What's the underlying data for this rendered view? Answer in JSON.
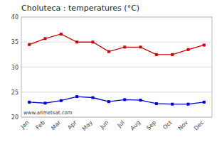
{
  "chart_data": {
    "type": "line",
    "title": "Choluteca : temperatures (°C)",
    "categories": [
      "Jan",
      "Feb",
      "Mar",
      "Apr",
      "May",
      "Jun",
      "Jul",
      "Aug",
      "Sep",
      "Oct",
      "Nov",
      "Dec"
    ],
    "series": [
      {
        "color": "#cc0000",
        "marker": "square",
        "values": [
          34.5,
          35.7,
          36.6,
          35.0,
          35.0,
          33.1,
          34.0,
          34.0,
          32.5,
          32.5,
          33.5,
          34.4
        ]
      },
      {
        "color": "#0000cc",
        "marker": "square",
        "values": [
          23.0,
          22.8,
          23.3,
          24.1,
          23.9,
          23.1,
          23.5,
          23.4,
          22.7,
          22.6,
          22.6,
          23.0
        ]
      }
    ],
    "ylim": [
      20,
      40
    ],
    "yticks": [
      20,
      25,
      30,
      35,
      40
    ],
    "grid": true,
    "annotations": [
      "www.allmetsat.com"
    ]
  }
}
